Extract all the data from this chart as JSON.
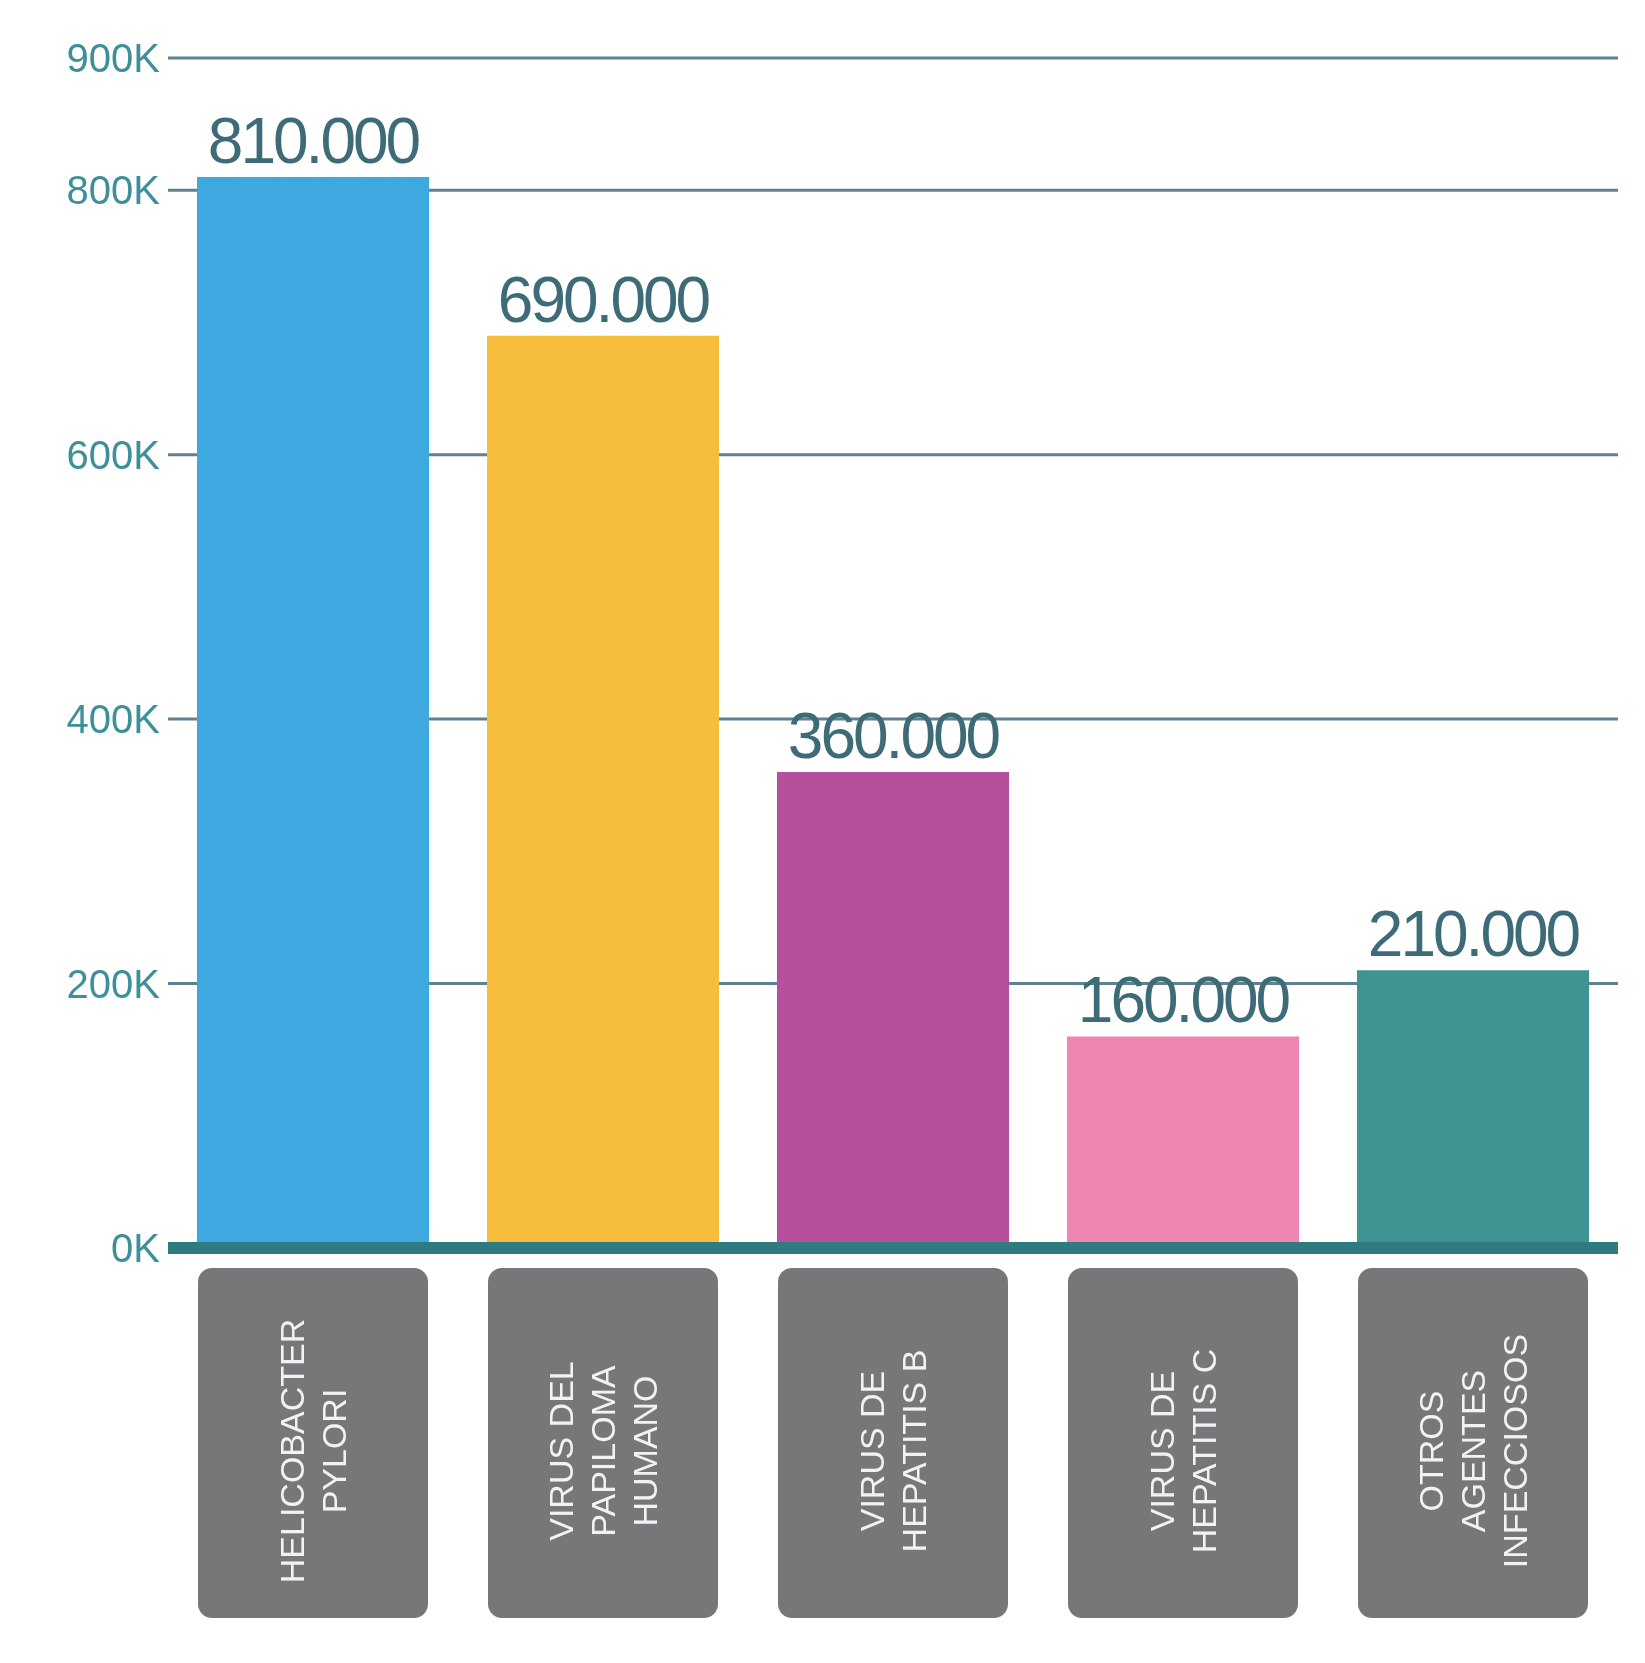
{
  "chart_data": {
    "type": "bar",
    "categories": [
      "HELICOBACTER PYLORI",
      "VIRUS DEL PAPILOMA HUMANO",
      "VIRUS DE HEPATITIS B",
      "VIRUS DE HEPATITIS C",
      "OTROS AGENTES INFECCIOSOS"
    ],
    "values": [
      810000,
      690000,
      360000,
      160000,
      210000
    ],
    "value_labels": [
      "810.000",
      "690.000",
      "360.000",
      "160.000",
      "210.000"
    ],
    "colors": [
      "#3ea8e0",
      "#f6be3c",
      "#b64f9e",
      "#ee86b3",
      "#3f9390"
    ],
    "ylim": [
      0,
      900000
    ],
    "yticks": [
      {
        "value": 0,
        "label": "0K"
      },
      {
        "value": 200000,
        "label": "200K"
      },
      {
        "value": 400000,
        "label": "400K"
      },
      {
        "value": 600000,
        "label": "600K"
      },
      {
        "value": 800000,
        "label": "800K"
      },
      {
        "value": 900000,
        "label": "900K"
      }
    ],
    "grid": "y"
  }
}
